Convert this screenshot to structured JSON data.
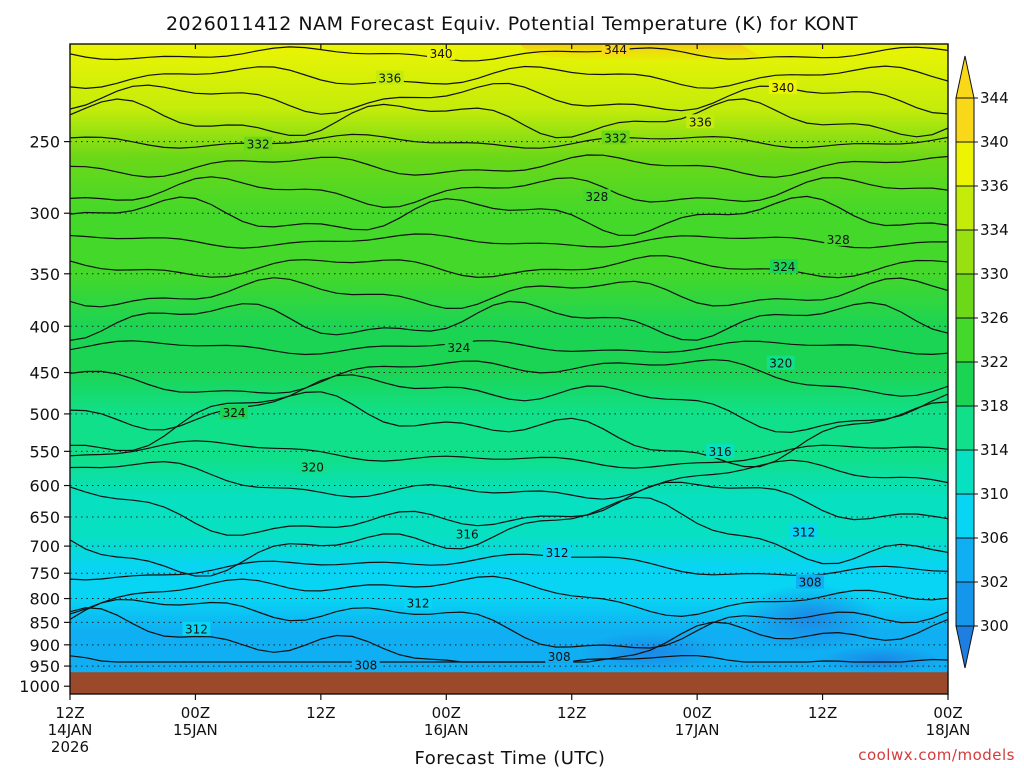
{
  "chart_data": {
    "type": "contour",
    "title": "2026011412 NAM Forecast Equiv. Potential Temperature (K) for KONT",
    "xlabel": "Forecast Time (UTC)",
    "ylabel": "",
    "y_axis": {
      "ticks": [
        "250",
        "300",
        "350",
        "400",
        "450",
        "500",
        "550",
        "600",
        "650",
        "700",
        "750",
        "800",
        "850",
        "900",
        "950",
        "1000"
      ],
      "values": [
        250,
        300,
        350,
        400,
        450,
        500,
        550,
        600,
        650,
        700,
        750,
        800,
        850,
        900,
        950,
        1000
      ],
      "scale": "log",
      "range": [
        195,
        1020
      ],
      "inverted": true
    },
    "x_axis": {
      "ticks": [
        {
          "h": 0,
          "l1": "12Z",
          "l2": "14JAN",
          "l3": "2026"
        },
        {
          "h": 12,
          "l1": "00Z",
          "l2": "15JAN",
          "l3": ""
        },
        {
          "h": 24,
          "l1": "12Z",
          "l2": "",
          "l3": ""
        },
        {
          "h": 36,
          "l1": "00Z",
          "l2": "16JAN",
          "l3": ""
        },
        {
          "h": 48,
          "l1": "12Z",
          "l2": "",
          "l3": ""
        },
        {
          "h": 60,
          "l1": "00Z",
          "l2": "17JAN",
          "l3": ""
        },
        {
          "h": 72,
          "l1": "12Z",
          "l2": "",
          "l3": ""
        },
        {
          "h": 84,
          "l1": "00Z",
          "l2": "18JAN",
          "l3": ""
        }
      ],
      "range": [
        0,
        84
      ],
      "units": "forecast hours"
    },
    "grid": true,
    "colorbar": {
      "levels": [
        300,
        302,
        306,
        310,
        314,
        318,
        322,
        326,
        330,
        334,
        336,
        340,
        344
      ],
      "colors": [
        "#1f7fe0",
        "#1496ea",
        "#10aef2",
        "#08d4f4",
        "#08e0c2",
        "#10e08a",
        "#1cd454",
        "#44d82a",
        "#6cd818",
        "#98e010",
        "#c4ec0a",
        "#ecf404",
        "#f8d818"
      ]
    },
    "contour_labels": [
      {
        "v": 344,
        "h": 52.2,
        "p": 198
      },
      {
        "v": 340,
        "h": 35.5,
        "p": 200
      },
      {
        "v": 340,
        "h": 68.2,
        "p": 218
      },
      {
        "v": 336,
        "h": 30.6,
        "p": 213
      },
      {
        "v": 336,
        "h": 60.3,
        "p": 238
      },
      {
        "v": 332,
        "h": 18.0,
        "p": 252
      },
      {
        "v": 332,
        "h": 52.2,
        "p": 248
      },
      {
        "v": 328,
        "h": 50.4,
        "p": 288
      },
      {
        "v": 328,
        "h": 73.5,
        "p": 321
      },
      {
        "v": 324,
        "h": 68.3,
        "p": 344
      },
      {
        "v": 324,
        "h": 37.2,
        "p": 423
      },
      {
        "v": 324,
        "h": 15.7,
        "p": 499
      },
      {
        "v": 320,
        "h": 68.0,
        "p": 440
      },
      {
        "v": 320,
        "h": 23.2,
        "p": 573
      },
      {
        "v": 316,
        "h": 62.2,
        "p": 551
      },
      {
        "v": 316,
        "h": 38.0,
        "p": 680
      },
      {
        "v": 312,
        "h": 70.2,
        "p": 676
      },
      {
        "v": 312,
        "h": 46.6,
        "p": 712
      },
      {
        "v": 312,
        "h": 33.3,
        "p": 810
      },
      {
        "v": 312,
        "h": 12.1,
        "p": 866
      },
      {
        "v": 308,
        "h": 70.8,
        "p": 768
      },
      {
        "v": 308,
        "h": 46.8,
        "p": 928
      },
      {
        "v": 308,
        "h": 28.3,
        "p": 949
      }
    ],
    "terrain_top_hPa": 965
  },
  "credit": "coolwx.com/models"
}
